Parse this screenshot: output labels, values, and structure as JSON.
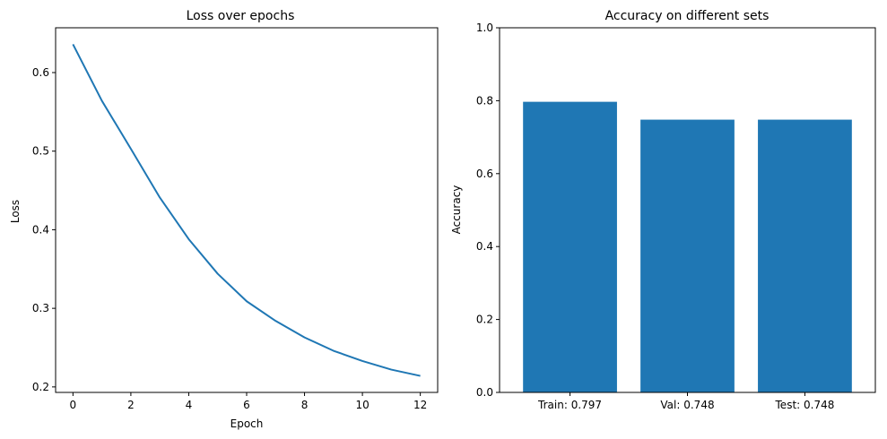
{
  "chart_data": [
    {
      "type": "line",
      "title": "Loss over epochs",
      "xlabel": "Epoch",
      "ylabel": "Loss",
      "xlim": [
        -0.6,
        12.6
      ],
      "ylim": [
        0.193,
        0.657
      ],
      "xticks": [
        0,
        2,
        4,
        6,
        8,
        10,
        12
      ],
      "yticks": [
        0.2,
        0.3,
        0.4,
        0.5,
        0.6
      ],
      "grid": false,
      "color": "#1f77b4",
      "series": [
        {
          "x": [
            0,
            1,
            2,
            3,
            4,
            5,
            6,
            7,
            8,
            9,
            10,
            11,
            12
          ],
          "values": [
            0.636,
            0.564,
            0.503,
            0.441,
            0.388,
            0.344,
            0.309,
            0.284,
            0.263,
            0.246,
            0.233,
            0.222,
            0.214
          ]
        }
      ]
    },
    {
      "type": "bar",
      "title": "Accuracy on different sets",
      "xlabel": "",
      "ylabel": "Accuracy",
      "ylim": [
        0,
        1.0
      ],
      "yticks": [
        0.0,
        0.2,
        0.4,
        0.6,
        0.8,
        1.0
      ],
      "grid": false,
      "color": "#1f77b4",
      "categories": [
        "Train: 0.797",
        "Val: 0.748",
        "Test: 0.748"
      ],
      "values": [
        0.797,
        0.748,
        0.748
      ]
    }
  ]
}
